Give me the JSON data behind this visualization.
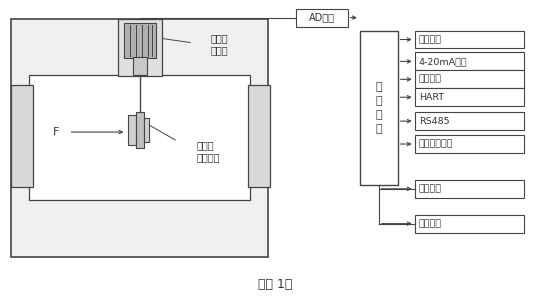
{
  "bg_color": "#ffffff",
  "line_color": "#444444",
  "title": "（图 1）",
  "font_color": "#333333",
  "right_labels": [
    {
      "text": "液晶显示"
    },
    {
      "text": "4-20mA输出"
    },
    {
      "text": "脉冲输出"
    },
    {
      "text": "HART"
    },
    {
      "text": "RS485"
    },
    {
      "text": "红外置零开关"
    },
    {
      "text": "压力采集"
    },
    {
      "text": "温度采集"
    }
  ]
}
